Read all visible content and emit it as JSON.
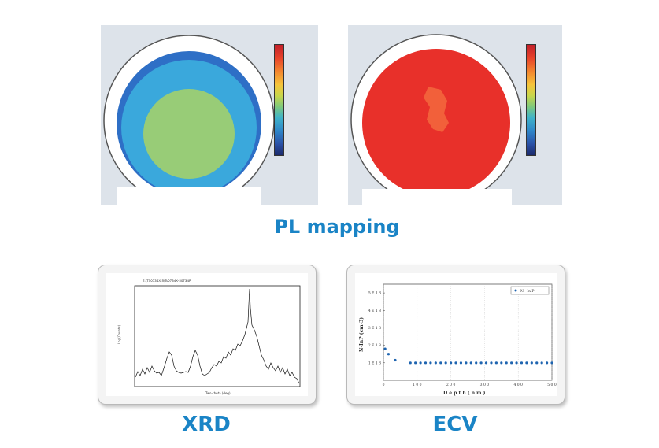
{
  "captions": {
    "pl": "PL mapping",
    "xrd": "XRD",
    "ecv": "ECV"
  },
  "colors": {
    "caption": "#1a84c6",
    "map_bg": "#dde3ea",
    "ring_blue": "#2e6fc6",
    "ring_cyan": "#3aa8dc",
    "center_green": "#98cc77",
    "map_red": "#e8302a",
    "map_red_light": "#f2603a"
  },
  "pl_maps": [
    {
      "name": "pl-map-left",
      "pattern": "blue-cyan-green"
    },
    {
      "name": "pl-map-right",
      "pattern": "red-uniform"
    }
  ],
  "xrd": {
    "title": "E:\\TS0734X-S\\Ts0734X-S0734R",
    "xlabel": "Two-theta (deg)",
    "ylabel": "Log(Counts)"
  },
  "ecv": {
    "legend": "N - In P",
    "xlabel": "D e p t h  ( n m )",
    "ylabel": "N-InP (cm-3)",
    "x_ticks": [
      "0",
      "1 0 0",
      "2 0 0",
      "3 0 0",
      "4 0 0",
      "5 0 0"
    ],
    "y_ticks": [
      "5 E 1 8",
      "4 E 1 8",
      "3 E 1 8",
      "2 E 1 8",
      "1 E 1 8"
    ]
  },
  "chart_data": {
    "type": "scatter",
    "xlabel": "D e p t h  ( n m )",
    "ylabel": "N-InP (cm-3)",
    "xlim": [
      0,
      500
    ],
    "ylim": [
      0,
      5.5
    ],
    "series": [
      {
        "name": "N - In P",
        "x": [
          5,
          15,
          35,
          80,
          95,
          110,
          125,
          140,
          155,
          170,
          185,
          200,
          215,
          230,
          245,
          260,
          275,
          290,
          305,
          320,
          335,
          350,
          365,
          380,
          395,
          410,
          425,
          440,
          455,
          470,
          485,
          500
        ],
        "y": [
          1.8,
          1.5,
          1.15,
          1.0,
          1.0,
          1.0,
          1.0,
          1.0,
          1.0,
          1.0,
          1.0,
          1.0,
          1.0,
          1.0,
          1.0,
          1.0,
          1.0,
          1.0,
          1.0,
          1.0,
          1.0,
          1.0,
          1.0,
          1.0,
          1.0,
          1.0,
          1.0,
          1.0,
          1.0,
          1.0,
          1.0,
          1.0
        ]
      }
    ]
  }
}
